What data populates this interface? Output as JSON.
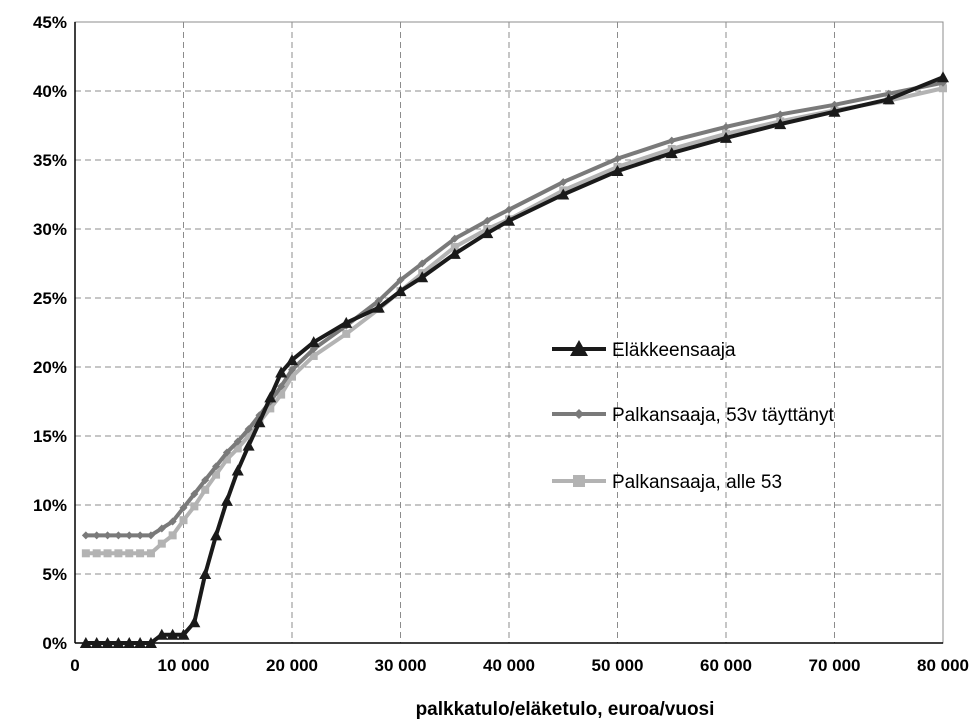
{
  "chart_data": {
    "type": "line",
    "title": "",
    "xlabel": "palkkatulo/eläketulo, euroa/vuosi",
    "ylabel": "",
    "xlim": [
      0,
      80000
    ],
    "ylim": [
      0,
      45
    ],
    "grid": true,
    "legend_position": "right-middle",
    "x_ticks": [
      0,
      10000,
      20000,
      30000,
      40000,
      50000,
      60000,
      70000,
      80000
    ],
    "x_tick_labels": [
      "0",
      "10 000",
      "20 000",
      "30 000",
      "40 000",
      "50 000",
      "60 000",
      "70 000",
      "80 000"
    ],
    "y_ticks": [
      0,
      5,
      10,
      15,
      20,
      25,
      30,
      35,
      40,
      45
    ],
    "y_tick_labels": [
      "0%",
      "5%",
      "10%",
      "15%",
      "20%",
      "25%",
      "30%",
      "35%",
      "40%",
      "45%"
    ],
    "series": [
      {
        "name": "Eläkkeensaaja",
        "color": "#1a1a1a",
        "marker": "triangle",
        "points": [
          [
            1000,
            0
          ],
          [
            2000,
            0
          ],
          [
            3000,
            0
          ],
          [
            4000,
            0
          ],
          [
            5000,
            0
          ],
          [
            6000,
            0
          ],
          [
            7000,
            0
          ],
          [
            8000,
            0.6
          ],
          [
            9000,
            0.6
          ],
          [
            10000,
            0.6
          ],
          [
            11000,
            1.5
          ],
          [
            12000,
            5
          ],
          [
            13000,
            7.8
          ],
          [
            14000,
            10.3
          ],
          [
            15000,
            12.5
          ],
          [
            16000,
            14.3
          ],
          [
            17000,
            16
          ],
          [
            18000,
            17.8
          ],
          [
            19000,
            19.6
          ],
          [
            20000,
            20.5
          ],
          [
            22000,
            21.8
          ],
          [
            25000,
            23.2
          ],
          [
            28000,
            24.3
          ],
          [
            30000,
            25.5
          ],
          [
            32000,
            26.5
          ],
          [
            35000,
            28.2
          ],
          [
            38000,
            29.7
          ],
          [
            40000,
            30.6
          ],
          [
            45000,
            32.5
          ],
          [
            50000,
            34.2
          ],
          [
            55000,
            35.5
          ],
          [
            60000,
            36.6
          ],
          [
            65000,
            37.6
          ],
          [
            70000,
            38.5
          ],
          [
            75000,
            39.4
          ],
          [
            80000,
            41
          ]
        ]
      },
      {
        "name": "Palkansaaja, 53v täyttänyt",
        "color": "#7a7a7a",
        "marker": "diamond",
        "points": [
          [
            1000,
            7.8
          ],
          [
            2000,
            7.8
          ],
          [
            3000,
            7.8
          ],
          [
            4000,
            7.8
          ],
          [
            5000,
            7.8
          ],
          [
            6000,
            7.8
          ],
          [
            7000,
            7.8
          ],
          [
            8000,
            8.3
          ],
          [
            9000,
            8.8
          ],
          [
            10000,
            9.8
          ],
          [
            11000,
            10.8
          ],
          [
            12000,
            11.8
          ],
          [
            13000,
            12.8
          ],
          [
            14000,
            13.8
          ],
          [
            15000,
            14.6
          ],
          [
            16000,
            15.5
          ],
          [
            17000,
            16.5
          ],
          [
            18000,
            17.5
          ],
          [
            19000,
            18.6
          ],
          [
            20000,
            19.8
          ],
          [
            22000,
            21.3
          ],
          [
            25000,
            23
          ],
          [
            28000,
            24.8
          ],
          [
            30000,
            26.3
          ],
          [
            32000,
            27.5
          ],
          [
            35000,
            29.3
          ],
          [
            38000,
            30.6
          ],
          [
            40000,
            31.4
          ],
          [
            45000,
            33.4
          ],
          [
            50000,
            35.1
          ],
          [
            55000,
            36.4
          ],
          [
            60000,
            37.4
          ],
          [
            65000,
            38.3
          ],
          [
            70000,
            39
          ],
          [
            75000,
            39.8
          ],
          [
            80000,
            40.6
          ]
        ]
      },
      {
        "name": "Palkansaaja, alle 53",
        "color": "#b3b3b3",
        "marker": "square",
        "points": [
          [
            1000,
            6.5
          ],
          [
            2000,
            6.5
          ],
          [
            3000,
            6.5
          ],
          [
            4000,
            6.5
          ],
          [
            5000,
            6.5
          ],
          [
            6000,
            6.5
          ],
          [
            7000,
            6.5
          ],
          [
            8000,
            7.2
          ],
          [
            9000,
            7.8
          ],
          [
            10000,
            8.9
          ],
          [
            11000,
            9.9
          ],
          [
            12000,
            11.1
          ],
          [
            13000,
            12.2
          ],
          [
            14000,
            13.3
          ],
          [
            15000,
            14.1
          ],
          [
            16000,
            15
          ],
          [
            17000,
            16
          ],
          [
            18000,
            17
          ],
          [
            19000,
            18
          ],
          [
            20000,
            19.3
          ],
          [
            22000,
            20.8
          ],
          [
            25000,
            22.4
          ],
          [
            28000,
            24.2
          ],
          [
            30000,
            25.5
          ],
          [
            32000,
            26.8
          ],
          [
            35000,
            28.7
          ],
          [
            38000,
            30
          ],
          [
            40000,
            30.7
          ],
          [
            45000,
            32.8
          ],
          [
            50000,
            34.5
          ],
          [
            55000,
            35.8
          ],
          [
            60000,
            36.9
          ],
          [
            65000,
            37.8
          ],
          [
            70000,
            38.6
          ],
          [
            75000,
            39.3
          ],
          [
            80000,
            40.2
          ]
        ]
      }
    ]
  }
}
